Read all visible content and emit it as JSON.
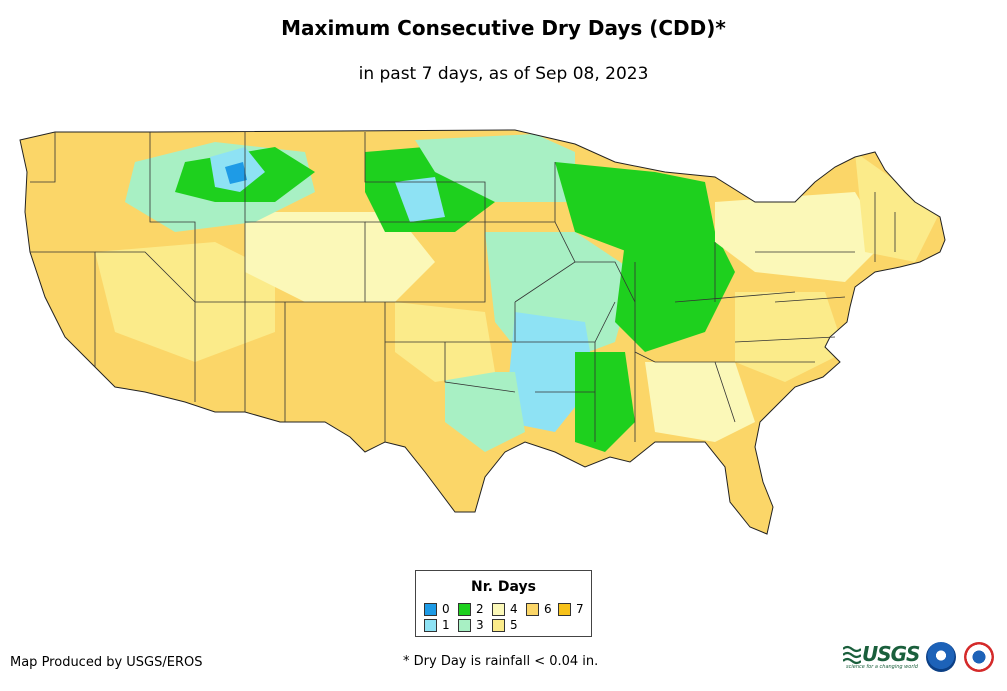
{
  "title": "Maximum Consecutive Dry Days (CDD)*",
  "subtitle": "in past 7 days, as of Sep 08, 2023",
  "legend": {
    "title": "Nr. Days",
    "items": [
      {
        "label": "0",
        "color": "#1e9be6"
      },
      {
        "label": "1",
        "color": "#8ee2f4"
      },
      {
        "label": "2",
        "color": "#1ed01e"
      },
      {
        "label": "3",
        "color": "#a8f0c4"
      },
      {
        "label": "4",
        "color": "#fbf8b8"
      },
      {
        "label": "5",
        "color": "#fbeb8a"
      },
      {
        "label": "6",
        "color": "#fbd668"
      },
      {
        "label": "7",
        "color": "#f7c21a"
      }
    ]
  },
  "footer": {
    "credit": "Map Produced by USGS/EROS",
    "note": "* Dry Day is rainfall < 0.04 in."
  },
  "logos": {
    "usgs": "USGS",
    "usgs_tagline": "science for a changing world",
    "noaa_icon": "noaa-seal-icon",
    "nws_icon": "nws-seal-icon"
  }
}
